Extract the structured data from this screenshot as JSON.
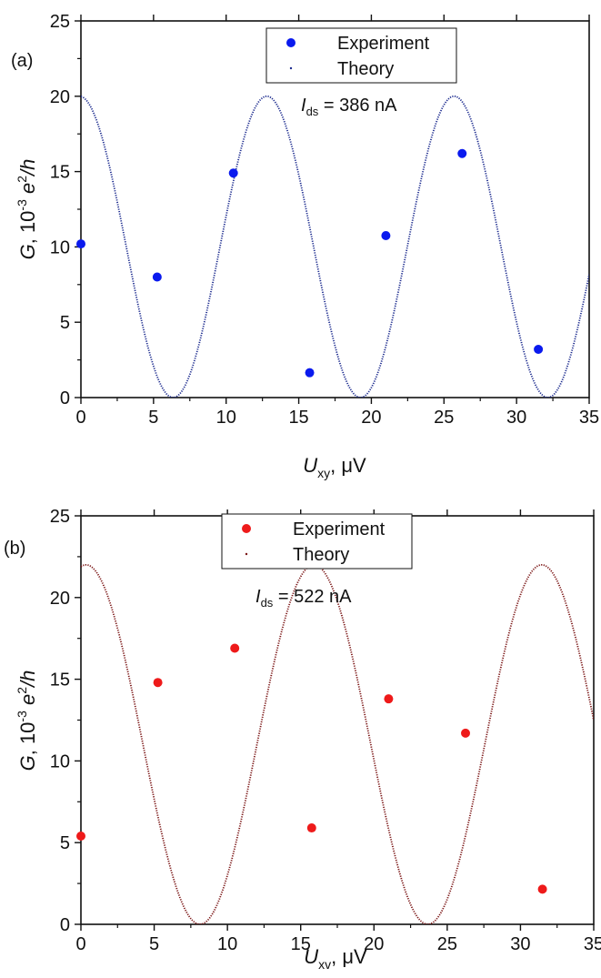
{
  "chart_data": [
    {
      "type": "scatter",
      "panel_label": "(a)",
      "xlabel": {
        "main": "U",
        "sub": "xy",
        "unit": ", μV"
      },
      "ylabel": {
        "main": "G",
        "mid": ", 10",
        "sup1": "-3",
        "e": "e",
        "sup2": "2",
        "end": "/h"
      },
      "xlim": [
        0,
        35
      ],
      "ylim": [
        0,
        25
      ],
      "xticks": [
        0,
        5,
        10,
        15,
        20,
        25,
        30,
        35
      ],
      "yticks": [
        0,
        5,
        10,
        15,
        20,
        25
      ],
      "annotation": {
        "main": "I",
        "sub": "ds",
        "rest": " = 386 nA"
      },
      "legend": {
        "placement": "top-center",
        "entries": [
          "Experiment",
          "Theory"
        ]
      },
      "colors": {
        "experiment": "#0a1aee",
        "theory": "#1b2a8e"
      },
      "series": [
        {
          "name": "Experiment",
          "x": [
            0,
            5.25,
            10.5,
            15.75,
            21.0,
            26.25,
            31.5
          ],
          "y": [
            10.2,
            8.0,
            14.9,
            1.65,
            10.75,
            16.2,
            3.2
          ]
        },
        {
          "name": "Theory",
          "curve": {
            "amplitude": 10,
            "offset": 10,
            "period": 12.9,
            "phase": -0.1
          }
        }
      ]
    },
    {
      "type": "scatter",
      "panel_label": "(b)",
      "xlabel": {
        "main": "U",
        "sub": "xv",
        "unit": ", μV"
      },
      "ylabel": {
        "main": "G",
        "mid": ", 10",
        "sup1": "-3",
        "e": "e",
        "sup2": "2",
        "end": "/h"
      },
      "xlim": [
        0,
        35
      ],
      "ylim": [
        0,
        25
      ],
      "xticks": [
        0,
        5,
        10,
        15,
        20,
        25,
        30,
        35
      ],
      "yticks": [
        0,
        5,
        10,
        15,
        20,
        25
      ],
      "annotation": {
        "main": "I",
        "sub": "ds",
        "rest": " = 522 nA"
      },
      "legend": {
        "placement": "top-center",
        "entries": [
          "Experiment",
          "Theory"
        ]
      },
      "colors": {
        "experiment": "#ee1a1a",
        "theory": "#7a1414"
      },
      "series": [
        {
          "name": "Experiment",
          "x": [
            0,
            5.25,
            10.5,
            15.75,
            21.0,
            26.25,
            31.5
          ],
          "y": [
            5.4,
            14.8,
            16.9,
            5.9,
            13.8,
            11.7,
            2.15
          ]
        },
        {
          "name": "Theory",
          "curve": {
            "amplitude": 11,
            "offset": 11,
            "period": 15.55,
            "phase": 0.35
          }
        }
      ]
    }
  ]
}
